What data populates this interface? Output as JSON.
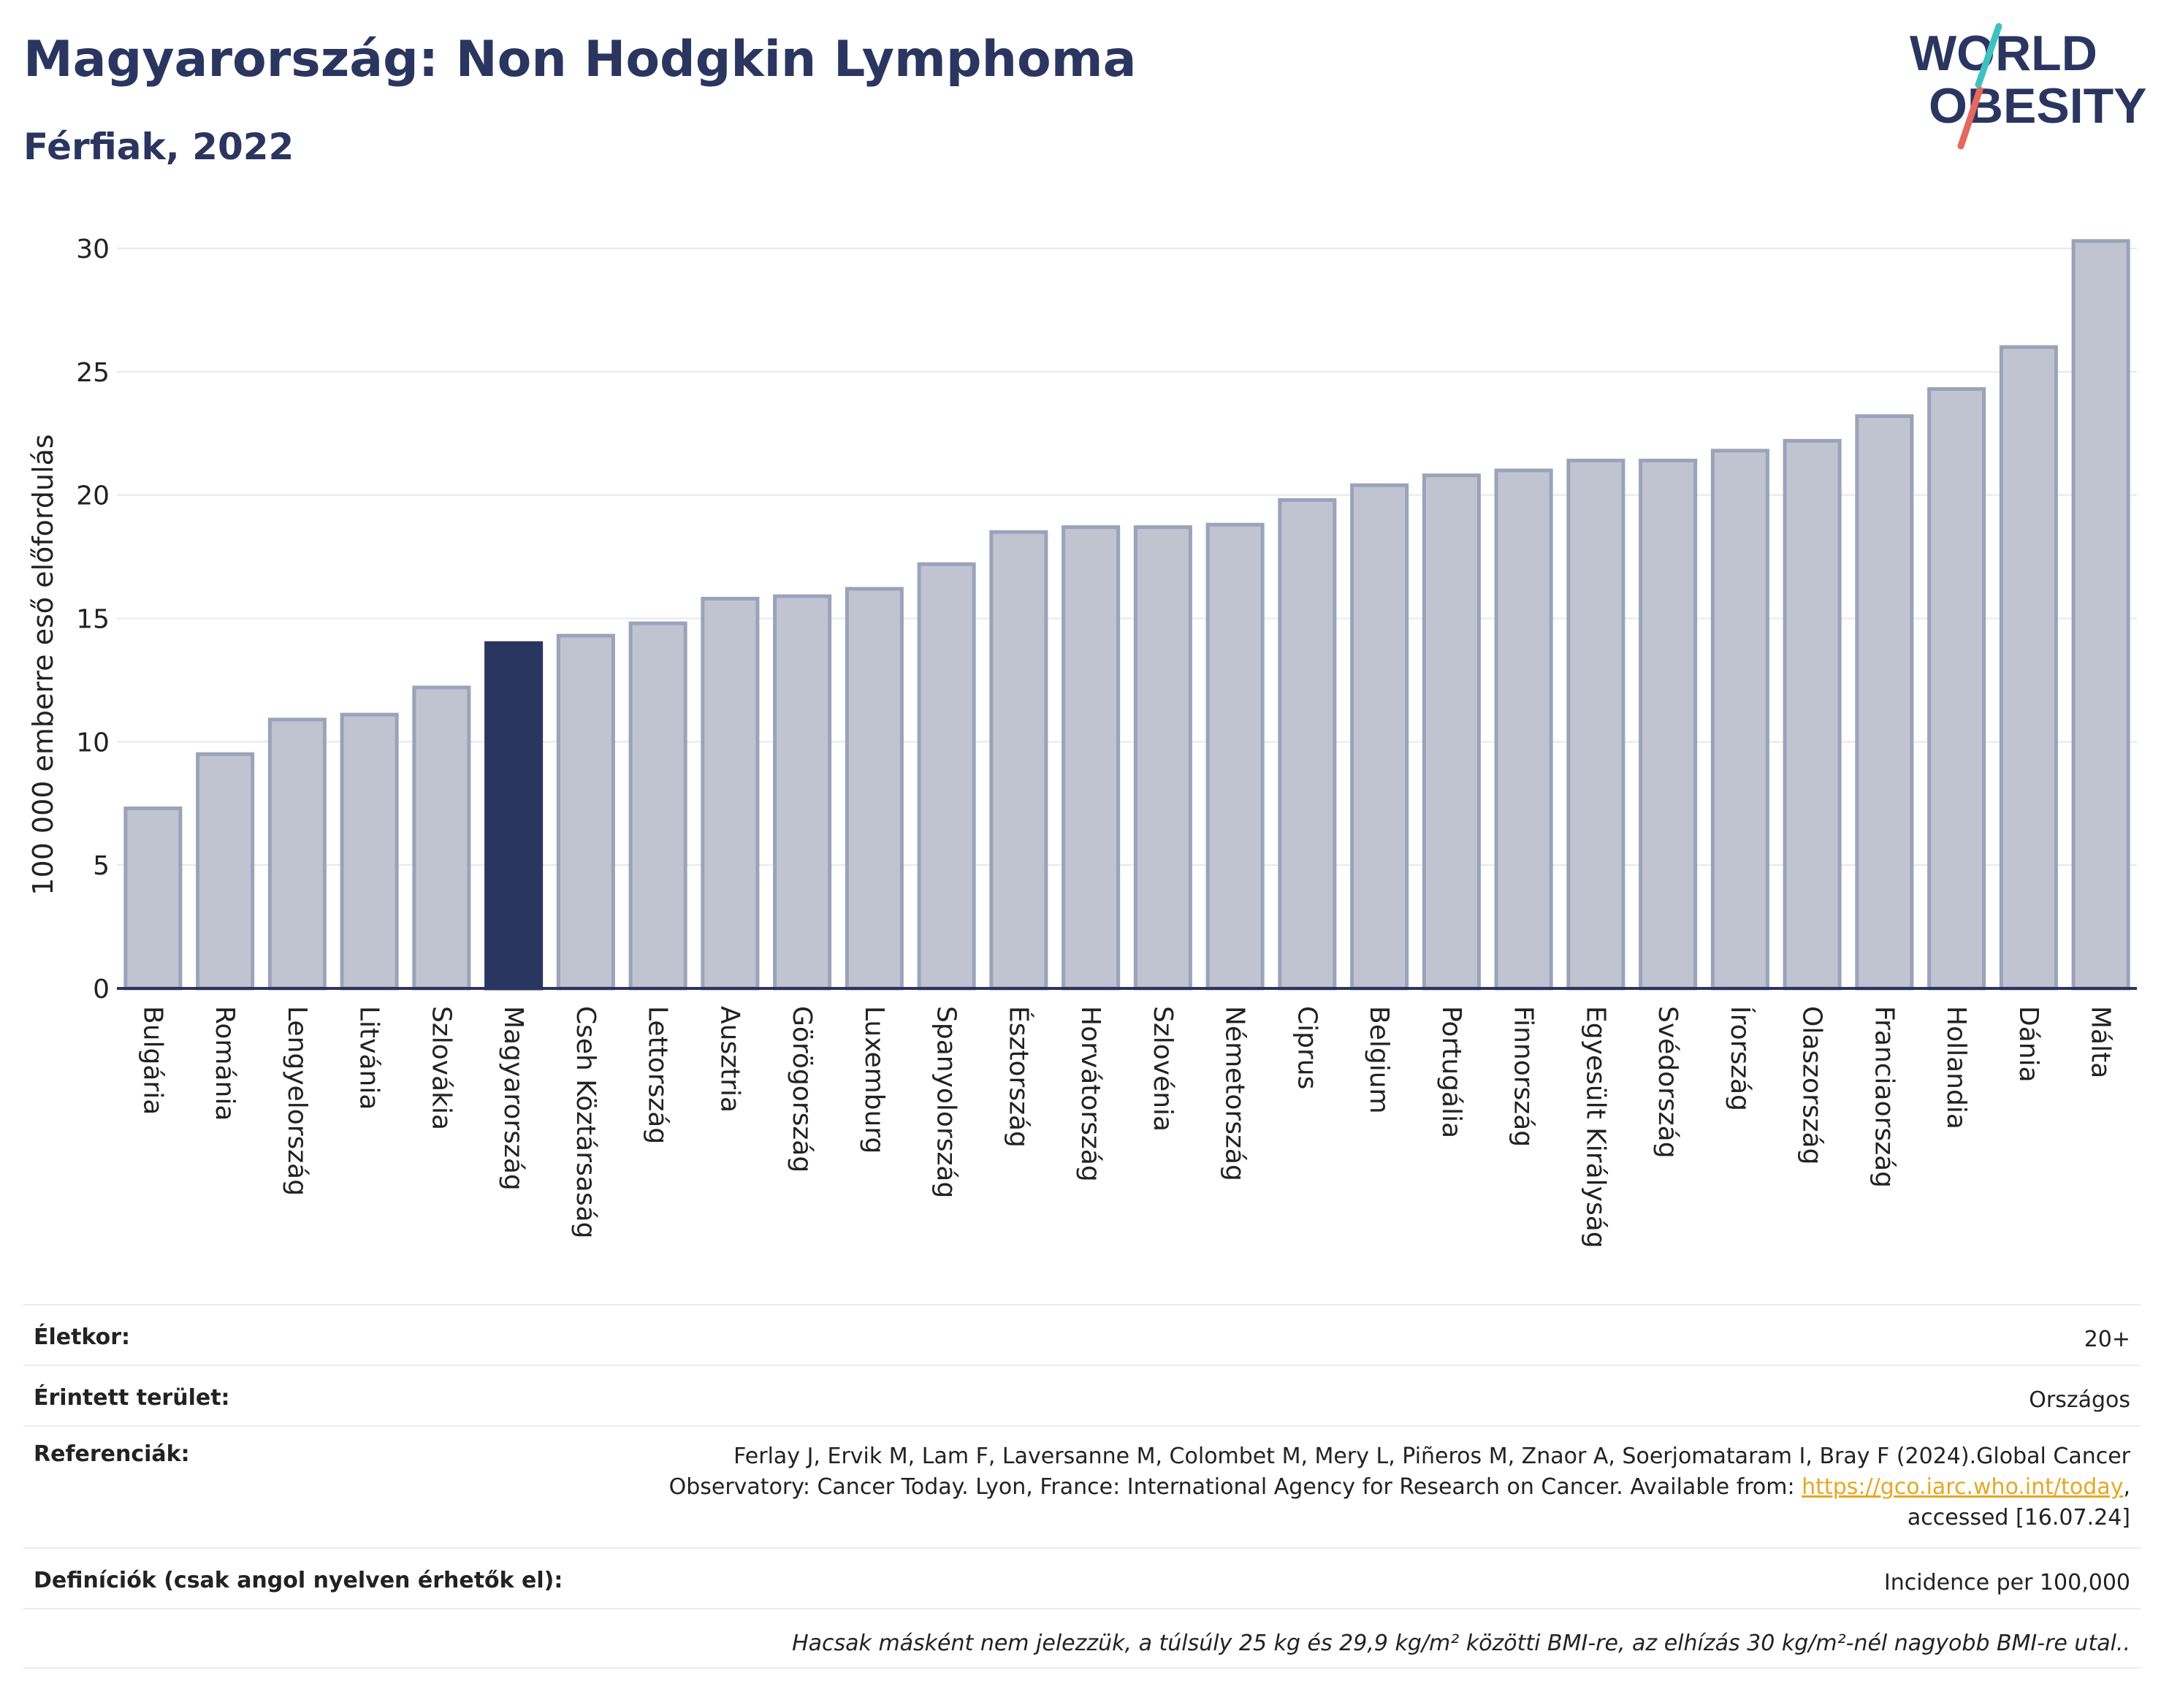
{
  "header": {
    "title": "Magyarország: Non Hodgkin Lymphoma",
    "subtitle": "Férfiak, 2022"
  },
  "logo": {
    "line1": "WORLD",
    "line2": "OBESITY"
  },
  "chart_data": {
    "type": "bar",
    "ylabel": "100 000 emberre eső előfordulás",
    "ylim": [
      0,
      31
    ],
    "yticks": [
      0,
      5,
      10,
      15,
      20,
      25,
      30
    ],
    "grid": true,
    "highlight": "Magyarország",
    "categories": [
      "Bulgária",
      "Románia",
      "Lengyelország",
      "Litvánia",
      "Szlovákia",
      "Magyarország",
      "Cseh Köztársaság",
      "Lettország",
      "Ausztria",
      "Görögország",
      "Luxemburg",
      "Spanyolország",
      "Észtország",
      "Horvátország",
      "Szlovénia",
      "Németország",
      "Ciprus",
      "Belgium",
      "Portugália",
      "Finnország",
      "Egyesült Királyság",
      "Svédország",
      "Írország",
      "Olaszország",
      "Franciaország",
      "Hollandia",
      "Dánia",
      "Málta"
    ],
    "values": [
      7.3,
      9.5,
      10.9,
      11.1,
      12.2,
      14.0,
      14.3,
      14.8,
      15.8,
      15.9,
      16.2,
      17.2,
      18.5,
      18.7,
      18.7,
      18.8,
      19.8,
      20.4,
      20.8,
      21.0,
      21.4,
      21.4,
      21.8,
      22.2,
      23.2,
      24.3,
      26.0,
      30.3
    ],
    "colors": {
      "default": "#c0c4d1",
      "default_border": "#9ca2ba",
      "highlight": "#2a3560",
      "axis": "#2a3560",
      "grid": "#e6e8ee"
    }
  },
  "info": {
    "age_label": "Életkor:",
    "age_value": "20+",
    "area_label": "Érintett terület:",
    "area_value": "Országos",
    "ref_label": "Referenciák:",
    "ref_line1": "Ferlay J, Ervik M, Lam F, Laversanne M, Colombet M, Mery L, Piñeros M, Znaor A, Soerjomataram I, Bray F (2024).Global Cancer",
    "ref_line2": "Observatory: Cancer Today. Lyon, France: International Agency for Research on Cancer. Available from: ",
    "ref_link": "https://gco.iarc.who.int/today",
    "ref_line2_end": ",",
    "ref_line3": "accessed [16.07.24]",
    "def_label": "Definíciók (csak angol nyelven érhetők el):",
    "def_value": "Incidence per 100,000",
    "note": "Hacsak másként nem jelezzük, a túlsúly 25 kg és 29,9 kg/m² közötti BMI-re, az elhízás 30 kg/m²-nél nagyobb BMI-re utal.."
  }
}
